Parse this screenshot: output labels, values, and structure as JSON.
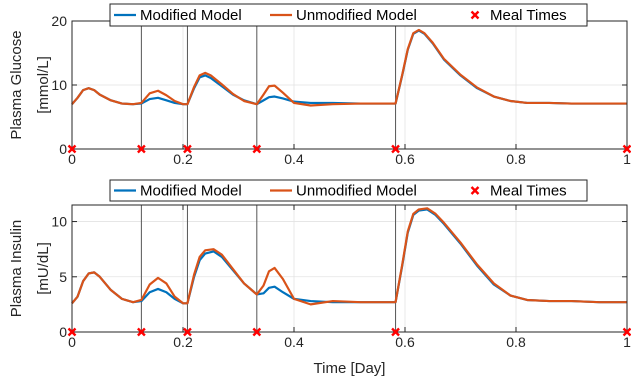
{
  "chart_data": [
    {
      "type": "line",
      "ylabel_lines": [
        "Plasma Glucose",
        "[mmol/L]"
      ],
      "xlabel": "",
      "xlim": [
        0,
        1
      ],
      "ylim": [
        0,
        20
      ],
      "xticks": [
        "0",
        "0.2",
        "0.4",
        "0.6",
        "0.8",
        "1"
      ],
      "yticks": [
        "0",
        "10",
        "20"
      ],
      "grid": true,
      "legend_position": "top-center",
      "vlines": [
        0.125,
        0.208,
        0.333,
        0.583
      ],
      "meal_times": [
        0,
        0.125,
        0.208,
        0.333,
        0.583,
        1.0
      ],
      "series": [
        {
          "name": "Modified Model",
          "color": "#0072BD",
          "x": [
            0,
            0.01,
            0.02,
            0.03,
            0.04,
            0.05,
            0.07,
            0.09,
            0.11,
            0.125,
            0.14,
            0.155,
            0.17,
            0.185,
            0.2,
            0.208,
            0.22,
            0.23,
            0.24,
            0.25,
            0.27,
            0.29,
            0.31,
            0.333,
            0.345,
            0.355,
            0.365,
            0.38,
            0.4,
            0.43,
            0.47,
            0.52,
            0.583,
            0.595,
            0.605,
            0.615,
            0.625,
            0.635,
            0.65,
            0.67,
            0.7,
            0.73,
            0.76,
            0.79,
            0.82,
            0.86,
            0.9,
            0.95,
            1.0
          ],
          "y": [
            7.0,
            8.0,
            9.2,
            9.5,
            9.2,
            8.5,
            7.6,
            7.1,
            7.0,
            7.1,
            7.8,
            8.0,
            7.6,
            7.2,
            7.0,
            7.0,
            9.5,
            11.2,
            11.5,
            11.1,
            9.8,
            8.5,
            7.6,
            7.0,
            7.6,
            8.1,
            8.2,
            7.9,
            7.4,
            7.2,
            7.2,
            7.1,
            7.1,
            11.5,
            15.5,
            18.0,
            18.5,
            18.0,
            16.5,
            14.0,
            11.5,
            9.5,
            8.2,
            7.5,
            7.2,
            7.2,
            7.1,
            7.1,
            7.1
          ]
        },
        {
          "name": "Unmodified Model",
          "color": "#D95319",
          "x": [
            0,
            0.01,
            0.02,
            0.03,
            0.04,
            0.05,
            0.07,
            0.09,
            0.11,
            0.125,
            0.14,
            0.155,
            0.17,
            0.185,
            0.2,
            0.208,
            0.22,
            0.23,
            0.24,
            0.25,
            0.27,
            0.29,
            0.31,
            0.333,
            0.345,
            0.355,
            0.365,
            0.38,
            0.4,
            0.43,
            0.47,
            0.52,
            0.583,
            0.595,
            0.605,
            0.615,
            0.625,
            0.635,
            0.65,
            0.67,
            0.7,
            0.73,
            0.76,
            0.79,
            0.82,
            0.86,
            0.9,
            0.95,
            1.0
          ],
          "y": [
            7.0,
            8.0,
            9.2,
            9.5,
            9.2,
            8.5,
            7.6,
            7.1,
            7.0,
            7.2,
            8.7,
            9.1,
            8.4,
            7.5,
            7.0,
            7.0,
            9.7,
            11.5,
            11.9,
            11.5,
            10.1,
            8.6,
            7.5,
            7.0,
            8.5,
            9.8,
            9.9,
            8.8,
            7.2,
            6.8,
            7.0,
            7.1,
            7.1,
            11.6,
            15.6,
            18.1,
            18.6,
            18.1,
            16.6,
            14.1,
            11.6,
            9.6,
            8.2,
            7.5,
            7.2,
            7.2,
            7.1,
            7.1,
            7.1
          ]
        }
      ]
    },
    {
      "type": "line",
      "ylabel_lines": [
        "Plasma Insulin",
        "[mU/dL]"
      ],
      "xlabel": "Time [Day]",
      "xlim": [
        0,
        1
      ],
      "ylim": [
        0,
        11.5
      ],
      "xticks": [
        "0",
        "0.2",
        "0.4",
        "0.6",
        "0.8",
        "1"
      ],
      "yticks": [
        "0",
        "5",
        "10"
      ],
      "grid": true,
      "legend_position": "top-center",
      "vlines": [
        0.125,
        0.208,
        0.333,
        0.583
      ],
      "meal_times": [
        0,
        0.125,
        0.208,
        0.333,
        0.583,
        1.0
      ],
      "series": [
        {
          "name": "Modified Model",
          "color": "#0072BD",
          "x": [
            0,
            0.01,
            0.02,
            0.03,
            0.04,
            0.05,
            0.07,
            0.09,
            0.11,
            0.125,
            0.14,
            0.155,
            0.17,
            0.185,
            0.2,
            0.208,
            0.22,
            0.23,
            0.24,
            0.255,
            0.27,
            0.29,
            0.31,
            0.333,
            0.345,
            0.355,
            0.365,
            0.38,
            0.4,
            0.43,
            0.47,
            0.52,
            0.583,
            0.595,
            0.605,
            0.615,
            0.625,
            0.64,
            0.655,
            0.67,
            0.7,
            0.73,
            0.76,
            0.79,
            0.82,
            0.86,
            0.9,
            0.95,
            1.0
          ],
          "y": [
            2.6,
            3.2,
            4.6,
            5.3,
            5.4,
            5.0,
            3.8,
            3.0,
            2.7,
            2.8,
            3.6,
            3.9,
            3.6,
            3.0,
            2.6,
            2.6,
            5.0,
            6.5,
            7.1,
            7.3,
            6.8,
            5.6,
            4.4,
            3.4,
            3.5,
            4.0,
            4.1,
            3.6,
            3.0,
            2.8,
            2.7,
            2.7,
            2.7,
            6.0,
            9.0,
            10.6,
            11.0,
            11.1,
            10.6,
            9.8,
            8.0,
            6.0,
            4.3,
            3.3,
            2.9,
            2.8,
            2.8,
            2.7,
            2.7
          ]
        },
        {
          "name": "Unmodified Model",
          "color": "#D95319",
          "x": [
            0,
            0.01,
            0.02,
            0.03,
            0.04,
            0.05,
            0.07,
            0.09,
            0.11,
            0.125,
            0.14,
            0.155,
            0.17,
            0.185,
            0.2,
            0.208,
            0.22,
            0.23,
            0.24,
            0.255,
            0.27,
            0.29,
            0.31,
            0.333,
            0.345,
            0.355,
            0.365,
            0.38,
            0.4,
            0.43,
            0.47,
            0.52,
            0.583,
            0.595,
            0.605,
            0.615,
            0.625,
            0.64,
            0.655,
            0.67,
            0.7,
            0.73,
            0.76,
            0.79,
            0.82,
            0.86,
            0.9,
            0.95,
            1.0
          ],
          "y": [
            2.6,
            3.2,
            4.6,
            5.3,
            5.4,
            5.0,
            3.8,
            3.0,
            2.7,
            2.9,
            4.3,
            4.9,
            4.4,
            3.2,
            2.6,
            2.6,
            5.2,
            6.8,
            7.4,
            7.5,
            7.0,
            5.7,
            4.4,
            3.4,
            4.2,
            5.5,
            5.8,
            4.8,
            3.0,
            2.5,
            2.8,
            2.7,
            2.7,
            6.1,
            9.1,
            10.7,
            11.1,
            11.2,
            10.7,
            9.9,
            8.1,
            6.1,
            4.4,
            3.3,
            2.9,
            2.8,
            2.8,
            2.7,
            2.7
          ]
        }
      ]
    }
  ]
}
